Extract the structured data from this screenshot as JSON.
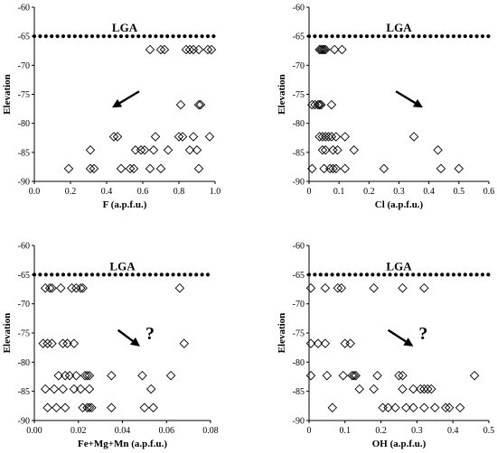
{
  "chart_data": [
    {
      "type": "scatter",
      "xlabel": "F (a.p.f.u.)",
      "ylabel": "Elevation",
      "xlim": [
        0,
        1
      ],
      "ylim": [
        -90,
        -60
      ],
      "xticks": [
        "0.0",
        "0.2",
        "0.4",
        "0.6",
        "0.8",
        "1.0"
      ],
      "yticks": [
        "-60",
        "-65",
        "-70",
        "-75",
        "-80",
        "-85",
        "-90"
      ],
      "reference_line": {
        "label": "LGA",
        "y": -65
      },
      "annotation": {
        "text": "",
        "arrow_from": [
          0.58,
          -74.5
        ],
        "arrow_to": [
          0.43,
          -77.3
        ]
      },
      "points": [
        [
          0.64,
          -67.3
        ],
        [
          0.7,
          -67.3
        ],
        [
          0.72,
          -67.3
        ],
        [
          0.84,
          -67.3
        ],
        [
          0.86,
          -67.3
        ],
        [
          0.88,
          -67.3
        ],
        [
          0.91,
          -67.3
        ],
        [
          0.96,
          -67.3
        ],
        [
          0.98,
          -67.3
        ],
        [
          0.91,
          -76.8
        ],
        [
          0.92,
          -76.8
        ],
        [
          0.81,
          -76.8
        ],
        [
          0.44,
          -82.3
        ],
        [
          0.46,
          -82.3
        ],
        [
          0.67,
          -82.3
        ],
        [
          0.8,
          -82.3
        ],
        [
          0.82,
          -82.3
        ],
        [
          0.88,
          -82.3
        ],
        [
          0.97,
          -82.3
        ],
        [
          0.31,
          -84.6
        ],
        [
          0.56,
          -84.6
        ],
        [
          0.59,
          -84.6
        ],
        [
          0.61,
          -84.6
        ],
        [
          0.66,
          -84.6
        ],
        [
          0.74,
          -84.6
        ],
        [
          0.86,
          -84.6
        ],
        [
          0.9,
          -84.6
        ],
        [
          0.19,
          -87.8
        ],
        [
          0.31,
          -87.8
        ],
        [
          0.33,
          -87.8
        ],
        [
          0.48,
          -87.8
        ],
        [
          0.53,
          -87.8
        ],
        [
          0.55,
          -87.8
        ],
        [
          0.64,
          -87.8
        ],
        [
          0.7,
          -87.8
        ],
        [
          0.91,
          -87.8
        ]
      ]
    },
    {
      "type": "scatter",
      "xlabel": "Cl (a.p.f.u.)",
      "ylabel": "Elevation",
      "xlim": [
        0,
        0.6
      ],
      "ylim": [
        -90,
        -60
      ],
      "xticks": [
        "0",
        "0.1",
        "0.2",
        "0.3",
        "0.4",
        "0.5",
        "0.6"
      ],
      "yticks": [
        "-60",
        "-65",
        "-70",
        "-75",
        "-80",
        "-85",
        "-90"
      ],
      "reference_line": {
        "label": "LGA",
        "y": -65
      },
      "annotation": {
        "text": "",
        "arrow_from": [
          0.29,
          -74.5
        ],
        "arrow_to": [
          0.38,
          -77.3
        ]
      },
      "points": [
        [
          0.035,
          -67.3
        ],
        [
          0.04,
          -67.3
        ],
        [
          0.045,
          -67.3
        ],
        [
          0.05,
          -67.3
        ],
        [
          0.055,
          -67.3
        ],
        [
          0.085,
          -67.3
        ],
        [
          0.11,
          -67.3
        ],
        [
          0.01,
          -76.8
        ],
        [
          0.02,
          -76.8
        ],
        [
          0.03,
          -76.8
        ],
        [
          0.035,
          -76.8
        ],
        [
          0.04,
          -76.8
        ],
        [
          0.075,
          -76.8
        ],
        [
          0.035,
          -82.3
        ],
        [
          0.045,
          -82.3
        ],
        [
          0.055,
          -82.3
        ],
        [
          0.065,
          -82.3
        ],
        [
          0.075,
          -82.3
        ],
        [
          0.09,
          -82.3
        ],
        [
          0.12,
          -82.3
        ],
        [
          0.35,
          -82.3
        ],
        [
          0.045,
          -84.6
        ],
        [
          0.055,
          -84.6
        ],
        [
          0.08,
          -84.6
        ],
        [
          0.095,
          -84.6
        ],
        [
          0.15,
          -84.6
        ],
        [
          0.43,
          -84.6
        ],
        [
          0.01,
          -87.8
        ],
        [
          0.05,
          -87.8
        ],
        [
          0.07,
          -87.8
        ],
        [
          0.08,
          -87.8
        ],
        [
          0.09,
          -87.8
        ],
        [
          0.12,
          -87.8
        ],
        [
          0.25,
          -87.8
        ],
        [
          0.44,
          -87.8
        ],
        [
          0.5,
          -87.8
        ]
      ]
    },
    {
      "type": "scatter",
      "xlabel": "Fe+Mg+Mn (a.p.f.u.)",
      "ylabel": "Elevation",
      "xlim": [
        0,
        0.08
      ],
      "ylim": [
        -90,
        -60
      ],
      "xticks": [
        "0.00",
        "0.02",
        "0.04",
        "0.06",
        "0.08"
      ],
      "yticks": [
        "-60",
        "-65",
        "-70",
        "-75",
        "-80",
        "-85",
        "-90"
      ],
      "reference_line": {
        "label": "LGA",
        "y": -65
      },
      "annotation": {
        "text": "?",
        "arrow_from": [
          0.038,
          -74.5
        ],
        "arrow_to": [
          0.048,
          -77.3
        ]
      },
      "points": [
        [
          0.005,
          -67.3
        ],
        [
          0.007,
          -67.3
        ],
        [
          0.008,
          -67.3
        ],
        [
          0.012,
          -67.3
        ],
        [
          0.017,
          -67.3
        ],
        [
          0.019,
          -67.3
        ],
        [
          0.021,
          -67.3
        ],
        [
          0.022,
          -67.3
        ],
        [
          0.066,
          -67.3
        ],
        [
          0.004,
          -76.8
        ],
        [
          0.006,
          -76.8
        ],
        [
          0.008,
          -76.8
        ],
        [
          0.013,
          -76.8
        ],
        [
          0.015,
          -76.8
        ],
        [
          0.018,
          -76.8
        ],
        [
          0.068,
          -76.8
        ],
        [
          0.011,
          -82.3
        ],
        [
          0.014,
          -82.3
        ],
        [
          0.016,
          -82.3
        ],
        [
          0.019,
          -82.3
        ],
        [
          0.023,
          -82.3
        ],
        [
          0.024,
          -82.3
        ],
        [
          0.025,
          -82.3
        ],
        [
          0.035,
          -82.3
        ],
        [
          0.049,
          -82.3
        ],
        [
          0.062,
          -82.3
        ],
        [
          0.005,
          -84.6
        ],
        [
          0.009,
          -84.6
        ],
        [
          0.013,
          -84.6
        ],
        [
          0.018,
          -84.6
        ],
        [
          0.021,
          -84.6
        ],
        [
          0.025,
          -84.6
        ],
        [
          0.053,
          -84.6
        ],
        [
          0.006,
          -87.8
        ],
        [
          0.01,
          -87.8
        ],
        [
          0.014,
          -87.8
        ],
        [
          0.022,
          -87.8
        ],
        [
          0.024,
          -87.8
        ],
        [
          0.025,
          -87.8
        ],
        [
          0.026,
          -87.8
        ],
        [
          0.035,
          -87.8
        ],
        [
          0.05,
          -87.8
        ],
        [
          0.054,
          -87.8
        ]
      ]
    },
    {
      "type": "scatter",
      "xlabel": "OH (a.p.f.u.)",
      "ylabel": "Elevation",
      "xlim": [
        0,
        0.5
      ],
      "ylim": [
        -90,
        -60
      ],
      "xticks": [
        "0",
        "0.1",
        "0.2",
        "0.3",
        "0.4",
        "0.5"
      ],
      "yticks": [
        "-60",
        "-65",
        "-70",
        "-75",
        "-80",
        "-85",
        "-90"
      ],
      "reference_line": {
        "label": "LGA",
        "y": -65
      },
      "annotation": {
        "text": "?",
        "arrow_from": [
          0.22,
          -74.5
        ],
        "arrow_to": [
          0.29,
          -77.3
        ]
      },
      "points": [
        [
          0.005,
          -67.3
        ],
        [
          0.045,
          -67.3
        ],
        [
          0.08,
          -67.3
        ],
        [
          0.09,
          -67.3
        ],
        [
          0.18,
          -67.3
        ],
        [
          0.26,
          -67.3
        ],
        [
          0.32,
          -67.3
        ],
        [
          0.005,
          -76.8
        ],
        [
          0.025,
          -76.8
        ],
        [
          0.045,
          -76.8
        ],
        [
          0.1,
          -76.8
        ],
        [
          0.115,
          -76.8
        ],
        [
          0.005,
          -82.3
        ],
        [
          0.05,
          -82.3
        ],
        [
          0.095,
          -82.3
        ],
        [
          0.12,
          -82.3
        ],
        [
          0.125,
          -82.3
        ],
        [
          0.13,
          -82.3
        ],
        [
          0.19,
          -82.3
        ],
        [
          0.25,
          -82.3
        ],
        [
          0.26,
          -82.3
        ],
        [
          0.46,
          -82.3
        ],
        [
          0.14,
          -84.6
        ],
        [
          0.18,
          -84.6
        ],
        [
          0.26,
          -84.6
        ],
        [
          0.29,
          -84.6
        ],
        [
          0.31,
          -84.6
        ],
        [
          0.32,
          -84.6
        ],
        [
          0.33,
          -84.6
        ],
        [
          0.34,
          -84.6
        ],
        [
          0.065,
          -87.8
        ],
        [
          0.205,
          -87.8
        ],
        [
          0.22,
          -87.8
        ],
        [
          0.24,
          -87.8
        ],
        [
          0.27,
          -87.8
        ],
        [
          0.29,
          -87.8
        ],
        [
          0.32,
          -87.8
        ],
        [
          0.35,
          -87.8
        ],
        [
          0.38,
          -87.8
        ],
        [
          0.39,
          -87.8
        ],
        [
          0.42,
          -87.8
        ]
      ]
    }
  ]
}
